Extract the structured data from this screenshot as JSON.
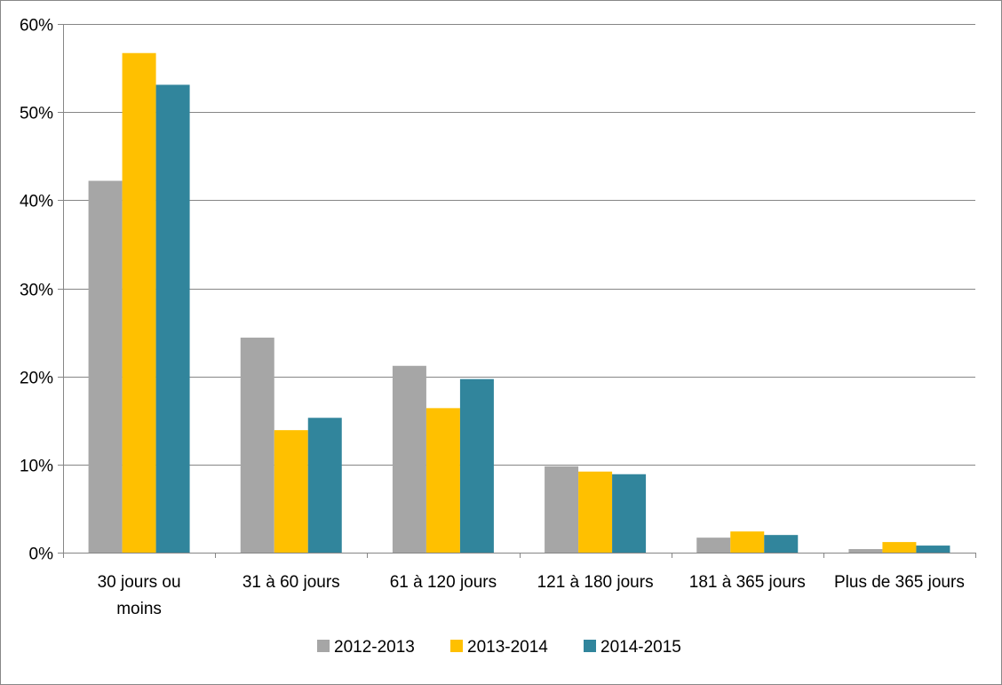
{
  "chart_data": {
    "type": "bar",
    "categories": [
      [
        "30 jours ou",
        "moins"
      ],
      [
        "31 à 60 jours"
      ],
      [
        "61 à 120 jours"
      ],
      [
        "121 à 180 jours"
      ],
      [
        "181 à 365 jours"
      ],
      [
        "Plus de 365 jours"
      ]
    ],
    "series": [
      {
        "name": "2012-2013",
        "color": "#a6a6a6",
        "values": [
          42.2,
          24.4,
          21.2,
          9.8,
          1.7,
          0.4
        ]
      },
      {
        "name": "2013-2014",
        "color": "#ffc000",
        "values": [
          56.7,
          13.9,
          16.4,
          9.2,
          2.4,
          1.2
        ]
      },
      {
        "name": "2014-2015",
        "color": "#31859c",
        "values": [
          53.1,
          15.3,
          19.7,
          8.9,
          2.0,
          0.8
        ]
      }
    ],
    "ylim": [
      0,
      60
    ],
    "yticks": [
      0,
      10,
      20,
      30,
      40,
      50,
      60
    ],
    "ytick_format": "{v}%",
    "grid": true,
    "legend_position": "bottom"
  }
}
